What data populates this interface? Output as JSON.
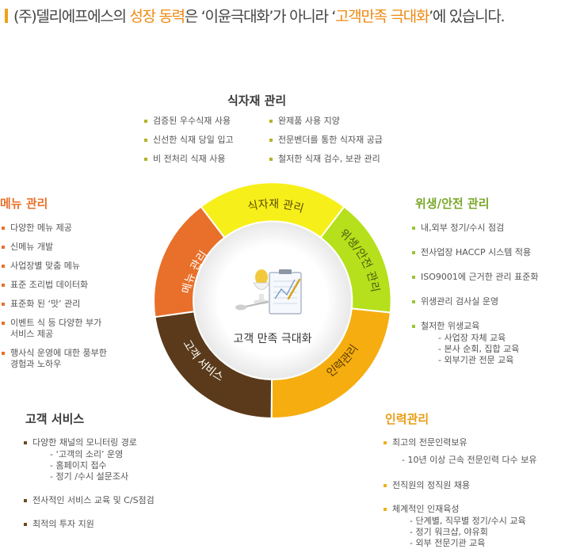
{
  "headline": {
    "prefix": "(주)델리에프에스의 ",
    "h1": "성장 동력",
    "mid": "은 ‘이윤극대화’가 아니라 ‘",
    "h2": "고객만족 극대화",
    "suffix": "’에 있습니다."
  },
  "center_label": "고객 만족 극대화",
  "segments": {
    "food": "식자재 관리",
    "hygiene": "위생/안전 관리",
    "hr": "인력관리",
    "service": "고객 서비스",
    "menu": "메뉴 관리"
  },
  "colors": {
    "food": "#f7ef1a",
    "hygiene": "#b5e01b",
    "hr": "#f5ad10",
    "service": "#5a3a1a",
    "menu": "#e8702a",
    "accent": "#ee8a12"
  },
  "food_section": {
    "title": "식자재 관리",
    "left": [
      "검증된 우수식재 사용",
      "신선한 식재  당일 입고",
      "비 전처리  식재 사용"
    ],
    "right": [
      "완제품 사용  지양",
      "전문벤더를 통한 식자재 공급",
      "철저한 식재 검수, 보관 관리"
    ]
  },
  "menu_section": {
    "title": "메뉴 관리",
    "items": [
      "다양한 메뉴 제공",
      "신메뉴 개발",
      "사업장별 맞춤 메뉴",
      "표준 조리법 데이터화",
      "표준화 된 ‘맛’ 관리"
    ],
    "item6_l1": "이벤트 식 등 다양한 부가",
    "item6_l2": "서비스 제공",
    "item7_l1": "행사식 운영에 대한 풍부한",
    "item7_l2": "경험과 노하우"
  },
  "hygiene_section": {
    "title": "위생/안전 관리",
    "items": [
      "내,외부 정기/수시 점검",
      "전사업장 HACCP 시스템  적용",
      "ISO9001에 근거한 관리 표준화",
      "위생관리 검사실 운영",
      "철저한 위생교육"
    ],
    "sub": [
      "-   사업장 자체 교육",
      "-   본사  순회, 집합 교육",
      "-   외부기관 전문 교육"
    ]
  },
  "service_section": {
    "title": "고객 서비스",
    "item1": "다양한 채널의 모니터링 경로",
    "sub": [
      "-  ‘고객의 소리’ 운영",
      "-  홈페이지  접수",
      "-  정기 /수시  설문조사"
    ],
    "item2": "전사적인 서비스 교육 및  C/S점검",
    "item3": "최적의 투자 지원"
  },
  "hr_section": {
    "title": "인력관리",
    "item1": "최고의 전문인력보유",
    "item1_sub": "- 10년 이상 근속 전문인력 다수 보유",
    "item2": "전직원의  정직원 채용",
    "item3": "체계적인 인재육성",
    "sub": [
      "-  단계별, 직무별 정기/수시 교육",
      "-  정기 워크샵, 야유회",
      "-  외부 전문기관 교육"
    ]
  }
}
